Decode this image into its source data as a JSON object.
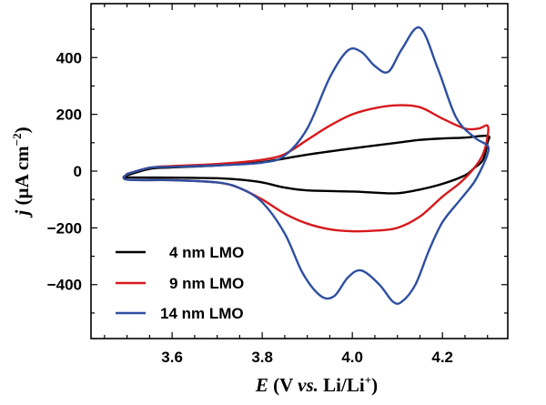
{
  "chart_data": {
    "type": "line",
    "title": "",
    "xlabel": {
      "italic": "E",
      "open": " (V ",
      "vs": "vs.",
      "rest": " Li/Li",
      "sup": "+",
      "close": ")"
    },
    "ylabel": {
      "italic": "j",
      "main": " (µA cm",
      "sup": "−2",
      "close": ")"
    },
    "xlim": [
      3.42,
      4.345
    ],
    "ylim": [
      -590,
      590
    ],
    "xticks": [
      3.6,
      3.8,
      4.0,
      4.2
    ],
    "xtick_labels": [
      "3.6",
      "3.8",
      "4.0",
      "4.2"
    ],
    "yticks": [
      -400,
      -200,
      0,
      200,
      400
    ],
    "ytick_labels": [
      "−400",
      "−200",
      "0",
      "200",
      "400"
    ],
    "legend_position": "bottom-left",
    "series": [
      {
        "name": "4 nm LMO",
        "color": "#000000",
        "x": [
          3.5,
          3.55,
          3.6,
          3.7,
          3.8,
          3.9,
          4.0,
          4.1,
          4.15,
          4.2,
          4.25,
          4.3,
          4.3,
          4.29,
          4.27,
          4.25,
          4.2,
          4.15,
          4.1,
          4.05,
          4.0,
          3.9,
          3.85,
          3.8,
          3.75,
          3.7,
          3.6,
          3.5,
          3.5
        ],
        "values": [
          -15,
          8,
          13,
          20,
          32,
          58,
          80,
          100,
          110,
          115,
          118,
          124,
          100,
          40,
          10,
          -15,
          -45,
          -65,
          -78,
          -76,
          -72,
          -68,
          -58,
          -40,
          -30,
          -25,
          -23,
          -22,
          -15
        ]
      },
      {
        "name": "9 nm LMO",
        "color": "#d7191c",
        "x": [
          3.5,
          3.55,
          3.6,
          3.7,
          3.8,
          3.85,
          3.9,
          3.95,
          4.0,
          4.05,
          4.1,
          4.15,
          4.2,
          4.25,
          4.28,
          4.3,
          4.3,
          4.29,
          4.27,
          4.24,
          4.2,
          4.15,
          4.1,
          4.05,
          4.0,
          3.95,
          3.9,
          3.85,
          3.8,
          3.75,
          3.7,
          3.6,
          3.5,
          3.5
        ],
        "values": [
          -10,
          12,
          18,
          25,
          40,
          60,
          110,
          160,
          200,
          222,
          232,
          225,
          185,
          150,
          150,
          160,
          120,
          60,
          10,
          -40,
          -90,
          -160,
          -200,
          -210,
          -212,
          -205,
          -185,
          -150,
          -100,
          -60,
          -40,
          -32,
          -30,
          -10
        ]
      },
      {
        "name": "14 nm LMO",
        "color": "#2e4fa1",
        "x": [
          3.5,
          3.55,
          3.6,
          3.7,
          3.8,
          3.85,
          3.9,
          3.95,
          3.99,
          4.02,
          4.05,
          4.08,
          4.11,
          4.15,
          4.19,
          4.23,
          4.27,
          4.3,
          4.3,
          4.29,
          4.27,
          4.24,
          4.2,
          4.17,
          4.14,
          4.11,
          4.09,
          4.06,
          4.02,
          3.99,
          3.96,
          3.93,
          3.89,
          3.85,
          3.8,
          3.75,
          3.7,
          3.6,
          3.5,
          3.5
        ],
        "values": [
          -10,
          12,
          15,
          20,
          30,
          55,
          150,
          330,
          425,
          420,
          370,
          350,
          430,
          505,
          360,
          190,
          120,
          90,
          60,
          20,
          -40,
          -100,
          -180,
          -280,
          -400,
          -460,
          -460,
          -400,
          -350,
          -375,
          -440,
          -440,
          -360,
          -220,
          -110,
          -60,
          -40,
          -32,
          -30,
          -10
        ]
      }
    ]
  }
}
